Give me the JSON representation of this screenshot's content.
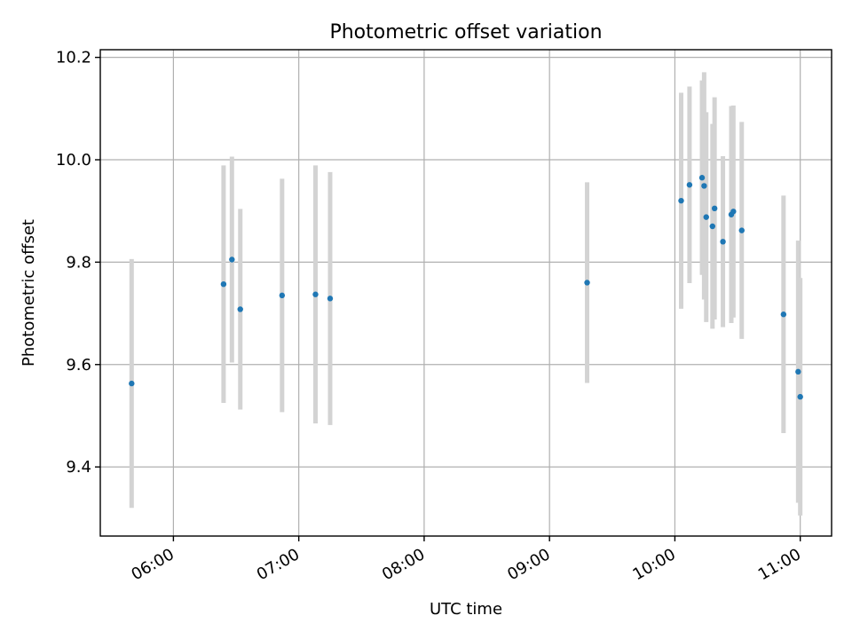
{
  "chart_data": {
    "type": "scatter",
    "title": "Photometric offset variation",
    "xlabel": "UTC time",
    "ylabel": "Photometric offset",
    "xlim": [
      "05:25",
      "11:15"
    ],
    "ylim": [
      9.265,
      10.215
    ],
    "grid": true,
    "marker_color": "#1f77b4",
    "errorbar_color": "#d3d3d3",
    "x_ticks": [
      "06:00",
      "07:00",
      "08:00",
      "09:00",
      "10:00",
      "11:00"
    ],
    "y_ticks": [
      9.4,
      9.6,
      9.8,
      10.0,
      10.2
    ],
    "y_tick_labels": [
      "9.4",
      "9.6",
      "9.8",
      "10.0",
      "10.2"
    ],
    "points": [
      {
        "t": "05:40",
        "y": 9.563,
        "err": 0.243
      },
      {
        "t": "06:24",
        "y": 9.757,
        "err": 0.232
      },
      {
        "t": "06:28",
        "y": 9.805,
        "err": 0.201
      },
      {
        "t": "06:32",
        "y": 9.708,
        "err": 0.196
      },
      {
        "t": "06:52",
        "y": 9.735,
        "err": 0.228
      },
      {
        "t": "07:08",
        "y": 9.737,
        "err": 0.252
      },
      {
        "t": "07:15",
        "y": 9.729,
        "err": 0.247
      },
      {
        "t": "09:18",
        "y": 9.76,
        "err": 0.196
      },
      {
        "t": "10:03",
        "y": 9.92,
        "err": 0.211
      },
      {
        "t": "10:07",
        "y": 9.951,
        "err": 0.192
      },
      {
        "t": "10:13",
        "y": 9.965,
        "err": 0.19
      },
      {
        "t": "10:14",
        "y": 9.949,
        "err": 0.222
      },
      {
        "t": "10:15",
        "y": 9.888,
        "err": 0.205
      },
      {
        "t": "10:18",
        "y": 9.87,
        "err": 0.2
      },
      {
        "t": "10:19",
        "y": 9.905,
        "err": 0.217
      },
      {
        "t": "10:23",
        "y": 9.84,
        "err": 0.167
      },
      {
        "t": "10:27",
        "y": 9.893,
        "err": 0.212
      },
      {
        "t": "10:28",
        "y": 9.899,
        "err": 0.207
      },
      {
        "t": "10:32",
        "y": 9.862,
        "err": 0.212
      },
      {
        "t": "10:52",
        "y": 9.698,
        "err": 0.232
      },
      {
        "t": "10:59",
        "y": 9.586,
        "err": 0.256
      },
      {
        "t": "11:00",
        "y": 9.537,
        "err": 0.232
      }
    ]
  }
}
